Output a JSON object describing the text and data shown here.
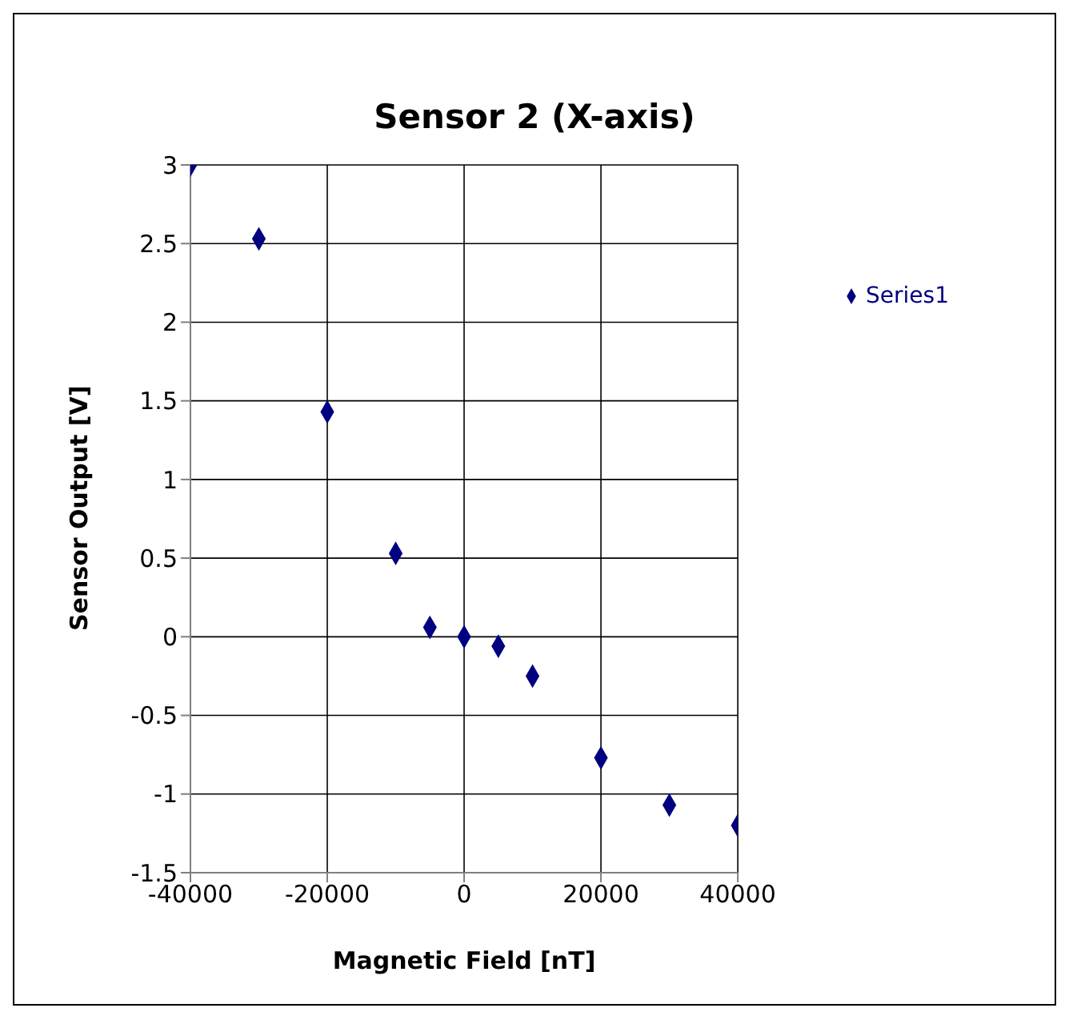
{
  "chart_data": {
    "type": "scatter",
    "title": "Sensor 2 (X-axis)",
    "xlabel": "Magnetic Field [nT]",
    "ylabel": "Sensor Output [V]",
    "x": [
      -40000,
      -30000,
      -20000,
      -10000,
      -5000,
      0,
      5000,
      10000,
      20000,
      30000,
      40000
    ],
    "series": [
      {
        "name": "Series1",
        "color": "#000080",
        "values": [
          3.0,
          2.53,
          1.43,
          0.53,
          0.06,
          0,
          -0.06,
          -0.25,
          -0.77,
          -1.07,
          -1.2
        ]
      }
    ],
    "xlim": [
      -40000,
      40000
    ],
    "xticks": [
      -40000,
      -20000,
      0,
      20000,
      40000
    ],
    "ylim": [
      -1.5,
      3
    ],
    "yticks": [
      -1.5,
      -1,
      -0.5,
      0,
      0.5,
      1,
      1.5,
      2,
      2.5,
      3
    ],
    "grid": true,
    "legend": "top right",
    "marker": "diamond"
  }
}
